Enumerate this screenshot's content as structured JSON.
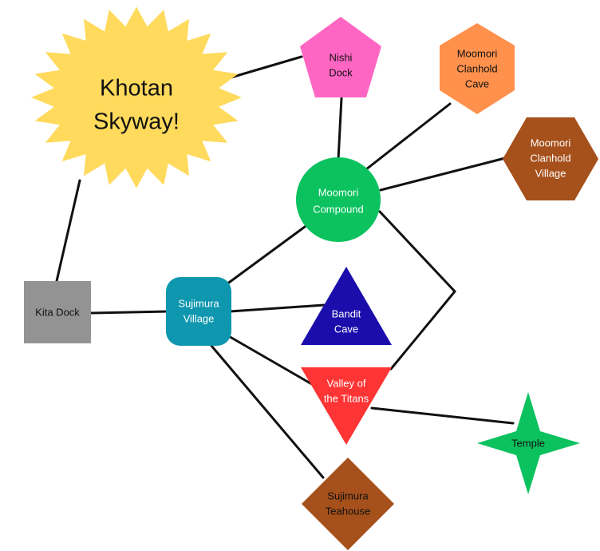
{
  "nodes": {
    "khotan_skyway": {
      "lines": [
        "Khotan",
        "Skyway!"
      ],
      "shape": "starburst",
      "color": "#FFDA5C",
      "text_color": "#111111"
    },
    "nishi_dock": {
      "lines": [
        "Nishi",
        "Dock"
      ],
      "shape": "pentagon",
      "color": "#FF66C4",
      "text_color": "#111111"
    },
    "moomori_clanhold_cave": {
      "lines": [
        "Moomori",
        "Clanhold",
        "Cave"
      ],
      "shape": "hexagon",
      "color": "#FF914D",
      "text_color": "#111111"
    },
    "moomori_clanhold_village": {
      "lines": [
        "Moomori",
        "Clanhold",
        "Village"
      ],
      "shape": "hexagon",
      "color": "#A6501B",
      "text_color": "#FFFFFF"
    },
    "moomori_compound": {
      "lines": [
        "Moomori",
        "Compound"
      ],
      "shape": "circle",
      "color": "#0BC25E",
      "text_color": "#FFFFFF"
    },
    "kita_dock": {
      "lines": [
        "Kita Dock"
      ],
      "shape": "square",
      "color": "#939393",
      "text_color": "#111111"
    },
    "sujimura_village": {
      "lines": [
        "Sujimura",
        "Village"
      ],
      "shape": "rounded-square",
      "color": "#0E97AF",
      "text_color": "#FFFFFF"
    },
    "bandit_cave": {
      "lines": [
        "Bandit",
        "Cave"
      ],
      "shape": "triangle",
      "color": "#1A0DAB",
      "text_color": "#FFFFFF"
    },
    "valley_of_the_titans": {
      "lines": [
        "Valley of",
        "the Titans"
      ],
      "shape": "inverted-triangle",
      "color": "#FF3434",
      "text_color": "#FFFFFF"
    },
    "temple": {
      "lines": [
        "Temple"
      ],
      "shape": "four-point-star",
      "color": "#0BC25E",
      "text_color": "#111111"
    },
    "sujimura_teahouse": {
      "lines": [
        "Sujimura",
        "Teahouse"
      ],
      "shape": "diamond",
      "color": "#A6501B",
      "text_color": "#111111"
    }
  },
  "edges": [
    [
      "khotan_skyway",
      "nishi_dock"
    ],
    [
      "khotan_skyway",
      "kita_dock"
    ],
    [
      "nishi_dock",
      "moomori_compound"
    ],
    [
      "moomori_compound",
      "moomori_clanhold_cave"
    ],
    [
      "moomori_compound",
      "moomori_clanhold_village"
    ],
    [
      "moomori_compound",
      "sujimura_village"
    ],
    [
      "moomori_compound",
      "valley_of_the_titans"
    ],
    [
      "kita_dock",
      "sujimura_village"
    ],
    [
      "sujimura_village",
      "bandit_cave"
    ],
    [
      "sujimura_village",
      "valley_of_the_titans"
    ],
    [
      "sujimura_village",
      "sujimura_teahouse"
    ],
    [
      "valley_of_the_titans",
      "temple"
    ]
  ]
}
